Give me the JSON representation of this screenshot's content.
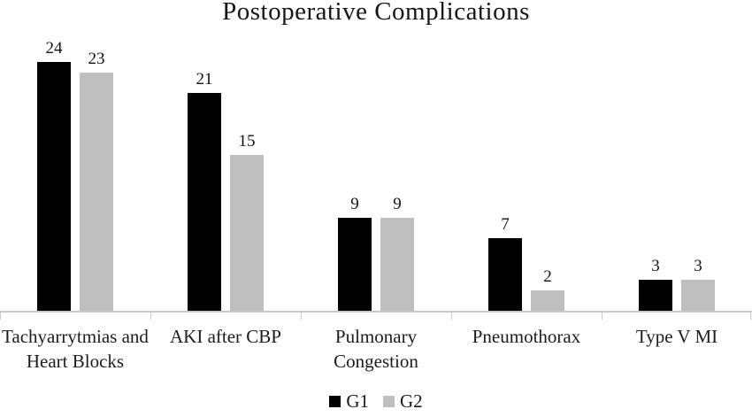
{
  "chart_data": {
    "type": "bar",
    "title": "Postoperative Complications",
    "categories": [
      "Tachyarrytmias and Heart Blocks",
      "AKI after CBP",
      "Pulmonary Congestion",
      "Pneumothorax",
      "Type V MI"
    ],
    "series": [
      {
        "name": "G1",
        "color": "#000000",
        "values": [
          24,
          21,
          9,
          7,
          3
        ]
      },
      {
        "name": "G2",
        "color": "#bfbfbf",
        "values": [
          23,
          15,
          9,
          2,
          3
        ]
      }
    ],
    "ylim": [
      0,
      24
    ],
    "grid": false,
    "legend_position": "bottom",
    "value_labels": true,
    "axis_color": "#c9c9c9"
  }
}
